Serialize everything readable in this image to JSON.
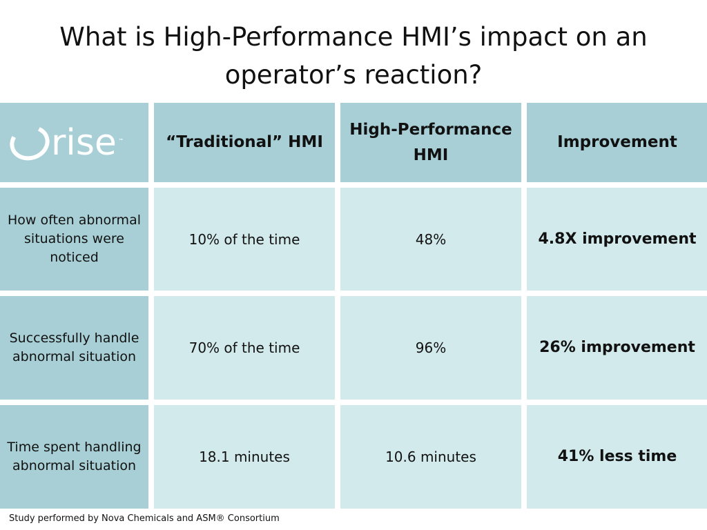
{
  "title": "What is High-Performance HMI’s impact on an operator’s reaction?",
  "logo": {
    "text": "rise",
    "tm": "™"
  },
  "headers": {
    "traditional": "“Traditional” HMI",
    "high_performance": "High-Performance HMI",
    "improvement": "Improvement"
  },
  "rows": [
    {
      "label": "How often abnormal situations were noticed",
      "traditional": "10% of the time",
      "high_performance": "48%",
      "improvement": "4.8X improvement"
    },
    {
      "label": "Successfully handle abnormal situation",
      "traditional": "70% of the time",
      "high_performance": "96%",
      "improvement": "26% improvement"
    },
    {
      "label": "Time spent handling abnormal situation",
      "traditional": "18.1 minutes",
      "high_performance": "10.6 minutes",
      "improvement": "41% less time"
    }
  ],
  "footer": "Study performed by Nova Chemicals and ASM® Consortium",
  "colors": {
    "header_bg": "#a7cfd5",
    "cell_bg": "#d2eaec",
    "text": "#111111"
  }
}
